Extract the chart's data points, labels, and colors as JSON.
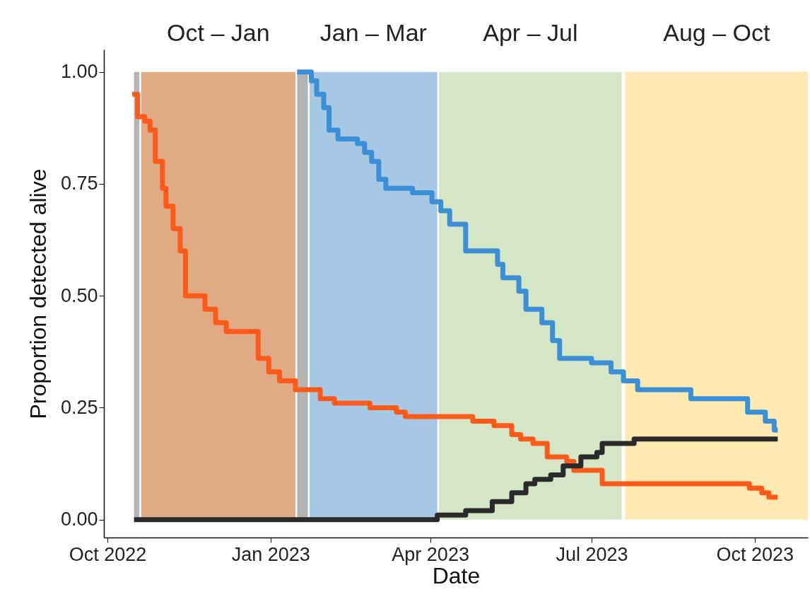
{
  "chart_data": {
    "type": "step",
    "xlabel": "Date",
    "ylabel": "Proportion detected alive",
    "xlim": [
      "2022-09-29",
      "2023-10-31"
    ],
    "xticks": [
      {
        "value": "2022-10-01",
        "label": "Oct 2022"
      },
      {
        "value": "2023-01-01",
        "label": "Jan 2023"
      },
      {
        "value": "2023-04-01",
        "label": "Apr 2023"
      },
      {
        "value": "2023-07-01",
        "label": "Jul 2023"
      },
      {
        "value": "2023-10-01",
        "label": "Oct 2023"
      }
    ],
    "ylim": [
      -0.04,
      1.05
    ],
    "yticks": [
      {
        "value": 0,
        "label": "0.00"
      },
      {
        "value": 0.25,
        "label": "0.25"
      },
      {
        "value": 0.5,
        "label": "0.50"
      },
      {
        "value": 0.75,
        "label": "0.75"
      },
      {
        "value": 1,
        "label": "1.00"
      }
    ],
    "grid": false,
    "line_style": "solid",
    "marker": "none",
    "series": [
      {
        "color": "#ff5a1a",
        "x": [
          "2022-10-15",
          "2022-10-18",
          "2022-10-22",
          "2022-10-25",
          "2022-10-28",
          "2022-11-01",
          "2022-11-03",
          "2022-11-07",
          "2022-11-11",
          "2022-11-14",
          "2022-11-25",
          "2022-12-01",
          "2022-12-07",
          "2022-12-25",
          "2022-12-31",
          "2023-01-06",
          "2023-01-15",
          "2023-01-29",
          "2023-02-06",
          "2023-02-26",
          "2023-03-13",
          "2023-03-18",
          "2023-04-25",
          "2023-05-07",
          "2023-05-17",
          "2023-05-22",
          "2023-05-29",
          "2023-06-06",
          "2023-06-17",
          "2023-06-21",
          "2023-07-07",
          "2023-09-28",
          "2023-10-05",
          "2023-10-09",
          "2023-10-14"
        ],
        "values": [
          0.95,
          0.9,
          0.89,
          0.87,
          0.8,
          0.74,
          0.7,
          0.65,
          0.6,
          0.5,
          0.47,
          0.44,
          0.42,
          0.36,
          0.33,
          0.31,
          0.29,
          0.27,
          0.26,
          0.25,
          0.24,
          0.23,
          0.22,
          0.21,
          0.19,
          0.18,
          0.17,
          0.14,
          0.13,
          0.11,
          0.08,
          0.07,
          0.06,
          0.05,
          0.05
        ]
      },
      {
        "color": "#3a8fd6",
        "x": [
          "2023-01-16",
          "2023-01-24",
          "2023-01-27",
          "2023-01-31",
          "2023-02-03",
          "2023-02-08",
          "2023-02-19",
          "2023-02-23",
          "2023-02-27",
          "2023-03-03",
          "2023-03-07",
          "2023-03-22",
          "2023-04-02",
          "2023-04-07",
          "2023-04-12",
          "2023-04-21",
          "2023-05-09",
          "2023-05-12",
          "2023-05-21",
          "2023-05-25",
          "2023-06-03",
          "2023-06-09",
          "2023-06-13",
          "2023-07-01",
          "2023-07-12",
          "2023-07-19",
          "2023-07-27",
          "2023-08-26",
          "2023-09-27",
          "2023-10-07",
          "2023-10-12",
          "2023-10-14"
        ],
        "values": [
          1.0,
          0.98,
          0.95,
          0.92,
          0.87,
          0.85,
          0.84,
          0.82,
          0.8,
          0.76,
          0.74,
          0.73,
          0.71,
          0.69,
          0.66,
          0.6,
          0.57,
          0.54,
          0.51,
          0.47,
          0.44,
          0.4,
          0.36,
          0.35,
          0.33,
          0.31,
          0.29,
          0.27,
          0.24,
          0.22,
          0.2,
          0.2
        ]
      },
      {
        "color": "#2a2a2a",
        "x": [
          "2022-10-16",
          "2023-04-05",
          "2023-04-21",
          "2023-05-06",
          "2023-05-17",
          "2023-05-25",
          "2023-05-30",
          "2023-06-08",
          "2023-06-15",
          "2023-06-25",
          "2023-07-04",
          "2023-07-07",
          "2023-07-25",
          "2023-10-14"
        ],
        "values": [
          0,
          0.01,
          0.02,
          0.04,
          0.06,
          0.08,
          0.09,
          0.1,
          0.12,
          0.14,
          0.15,
          0.17,
          0.18,
          0.18
        ]
      }
    ],
    "bands": [
      {
        "axis": "x",
        "from": "2022-10-16",
        "to": "2022-10-19",
        "color": "#828282"
      },
      {
        "axis": "x",
        "from": "2022-10-20",
        "to": "2023-01-15",
        "label": "Oct – Jan",
        "color": "#cb7134"
      },
      {
        "axis": "x",
        "from": "2023-01-16",
        "to": "2023-01-22",
        "color": "#828282"
      },
      {
        "axis": "x",
        "from": "2023-01-23",
        "to": "2023-04-05",
        "label": "Jan – Mar",
        "color": "#6ba3d2"
      },
      {
        "axis": "x",
        "from": "2023-04-06",
        "to": "2023-07-18",
        "label": "Apr – Jul",
        "color": "#b7d5a0"
      },
      {
        "axis": "x",
        "from": "2023-07-20",
        "to": "2023-10-31",
        "label": "Aug – Oct",
        "color": "#fdda7b"
      }
    ]
  }
}
